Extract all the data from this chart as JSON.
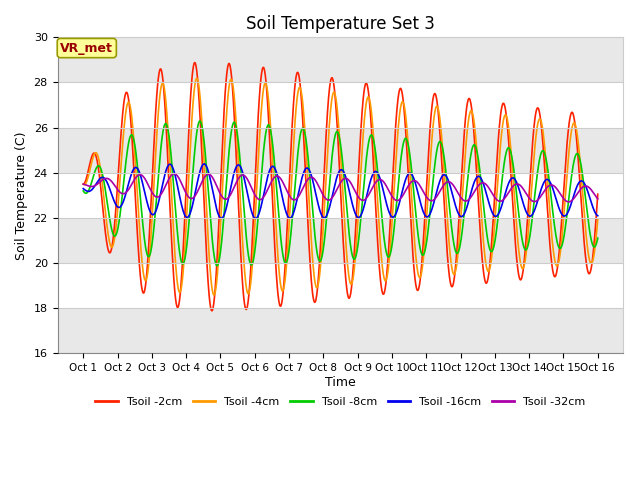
{
  "title": "Soil Temperature Set 3",
  "xlabel": "Time",
  "ylabel": "Soil Temperature (C)",
  "ylim": [
    16,
    30
  ],
  "yticks": [
    16,
    18,
    20,
    22,
    24,
    26,
    28,
    30
  ],
  "x_labels": [
    "Oct 1",
    "Oct 2",
    "Oct 3",
    "Oct 4",
    "Oct 5",
    "Oct 6",
    "Oct 7",
    "Oct 8",
    "Oct 9",
    "Oct 10",
    "Oct 11",
    "Oct 12",
    "Oct 13",
    "Oct 14",
    "Oct 15",
    "Oct 16"
  ],
  "fig_bg_color": "#ffffff",
  "plot_bg_color": "#ffffff",
  "stripe_color_dark": "#e8e8e8",
  "annotation_text": "VR_met",
  "annotation_color": "#990000",
  "annotation_bg": "#ffff99",
  "annotation_border": "#999900",
  "series": [
    {
      "label": "Tsoil -2cm",
      "color": "#ff2200",
      "amplitude": 5.5,
      "phase_shift": 0.0,
      "mean": 23.5,
      "depth_delay": 0.0
    },
    {
      "label": "Tsoil -4cm",
      "color": "#ff9900",
      "amplitude": 4.8,
      "phase_shift": 0.12,
      "mean": 23.5,
      "depth_delay": 0.12
    },
    {
      "label": "Tsoil -8cm",
      "color": "#00cc00",
      "amplitude": 3.2,
      "phase_shift": 0.3,
      "mean": 23.2,
      "depth_delay": 0.3
    },
    {
      "label": "Tsoil -16cm",
      "color": "#0000ee",
      "amplitude": 1.2,
      "phase_shift": 0.55,
      "mean": 23.3,
      "depth_delay": 0.55
    },
    {
      "label": "Tsoil -32cm",
      "color": "#aa00aa",
      "amplitude": 0.55,
      "phase_shift": 0.8,
      "mean": 23.5,
      "depth_delay": 0.8
    }
  ],
  "num_days": 15,
  "points_per_day": 96,
  "linewidth": 1.2
}
